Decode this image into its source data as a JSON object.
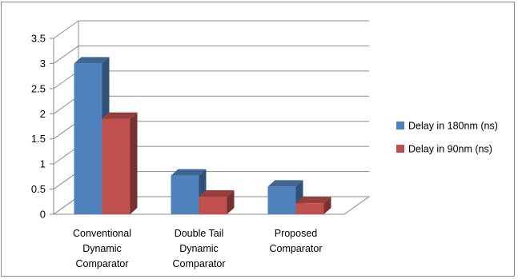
{
  "chart_data": {
    "type": "bar",
    "style": "3d-clustered-column",
    "categories": [
      [
        "Conventional",
        "Dynamic",
        "Comparator"
      ],
      [
        "Double Tail",
        "Dynamic",
        "Comparator"
      ],
      [
        "Proposed",
        "Comparator"
      ]
    ],
    "series": [
      {
        "name": "Delay in 180nm (ns)",
        "values": [
          3.0,
          0.77,
          0.55
        ],
        "color": "#4f81bd"
      },
      {
        "name": "Delay in 90nm (ns)",
        "values": [
          1.9,
          0.35,
          0.22
        ],
        "color": "#c0504d"
      }
    ],
    "ylim": [
      0,
      3.5
    ],
    "yticks": [
      "0",
      "0.5",
      "1",
      "1.5",
      "2",
      "2.5",
      "3",
      "3.5"
    ],
    "grid": true,
    "legend_position": "right"
  }
}
